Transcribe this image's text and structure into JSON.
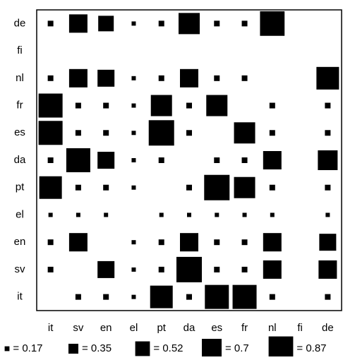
{
  "chart_data": {
    "type": "square-matrix",
    "row_labels": [
      "de",
      "fi",
      "nl",
      "fr",
      "es",
      "da",
      "pt",
      "el",
      "en",
      "sv",
      "it"
    ],
    "categories": [
      "it",
      "sv",
      "en",
      "el",
      "pt",
      "da",
      "es",
      "fr",
      "nl",
      "fi",
      "de"
    ],
    "color": "#000000",
    "values": [
      [
        0.2,
        0.65,
        0.55,
        0.15,
        0.2,
        0.75,
        0.2,
        0.2,
        0.87,
        null,
        null
      ],
      [
        null,
        null,
        null,
        null,
        null,
        null,
        null,
        null,
        null,
        null,
        null
      ],
      [
        0.2,
        0.65,
        0.6,
        0.15,
        0.2,
        0.65,
        0.2,
        0.2,
        null,
        null,
        0.8
      ],
      [
        0.85,
        0.2,
        0.2,
        0.15,
        0.75,
        0.2,
        0.75,
        null,
        0.2,
        null,
        0.2
      ],
      [
        0.85,
        0.2,
        0.2,
        0.15,
        0.9,
        0.2,
        null,
        0.75,
        0.2,
        null,
        0.2
      ],
      [
        0.2,
        0.85,
        0.6,
        0.15,
        0.2,
        null,
        0.2,
        0.2,
        0.65,
        null,
        0.7
      ],
      [
        0.8,
        0.2,
        0.2,
        0.15,
        null,
        0.2,
        0.9,
        0.75,
        0.2,
        null,
        0.2
      ],
      [
        0.15,
        0.15,
        0.15,
        null,
        0.15,
        0.15,
        0.15,
        0.15,
        0.15,
        null,
        0.15
      ],
      [
        0.2,
        0.65,
        null,
        0.15,
        0.2,
        0.65,
        0.2,
        0.2,
        0.65,
        null,
        0.6
      ],
      [
        0.2,
        null,
        0.6,
        0.15,
        0.2,
        0.9,
        0.2,
        0.2,
        0.65,
        null,
        0.65
      ],
      [
        null,
        0.2,
        0.2,
        0.15,
        0.8,
        0.2,
        0.85,
        0.85,
        0.2,
        null,
        0.2
      ]
    ],
    "size_legend": [
      {
        "value": 0.17,
        "label": "= 0.17"
      },
      {
        "value": 0.35,
        "label": "= 0.35"
      },
      {
        "value": 0.52,
        "label": "= 0.52"
      },
      {
        "value": 0.7,
        "label": "= 0.7"
      },
      {
        "value": 0.87,
        "label": "= 0.87"
      }
    ]
  }
}
